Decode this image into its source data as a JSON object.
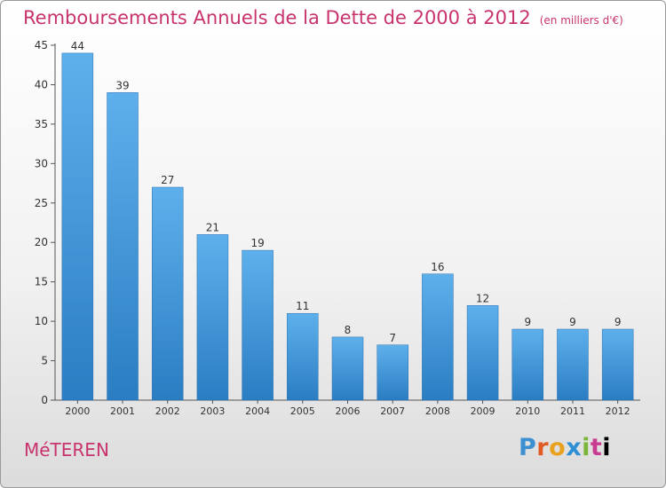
{
  "header": {
    "title": "Remboursements Annuels de la Dette de 2000 à 2012",
    "unit": "(en milliers d'€)"
  },
  "footer": {
    "town": "MéTEREN",
    "logo_letters": [
      "P",
      "r",
      "o",
      "x",
      "i",
      "t",
      "i"
    ]
  },
  "colors": {
    "title": "#c8336e",
    "bar_light": "#5eb0ec",
    "bar_dark": "#2a7dc2"
  },
  "chart_data": {
    "type": "bar",
    "title": "Remboursements Annuels de la Dette de 2000 à 2012",
    "xlabel": "",
    "ylabel": "",
    "categories": [
      "2000",
      "2001",
      "2002",
      "2003",
      "2004",
      "2005",
      "2006",
      "2007",
      "2008",
      "2009",
      "2010",
      "2011",
      "2012"
    ],
    "values": [
      44,
      39,
      27,
      21,
      19,
      11,
      8,
      7,
      16,
      12,
      9,
      9,
      9
    ],
    "ylim": [
      0,
      45
    ],
    "yticks": [
      0,
      5,
      10,
      15,
      20,
      25,
      30,
      35,
      40,
      45
    ],
    "grid": false,
    "legend": "none"
  }
}
